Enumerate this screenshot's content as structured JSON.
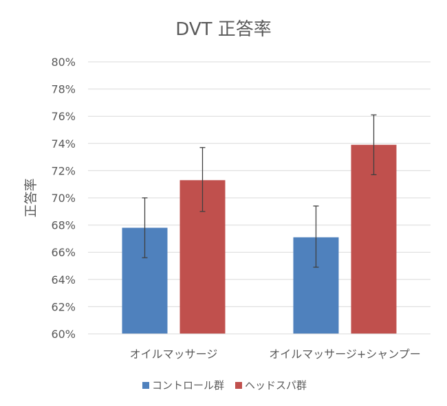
{
  "chart_data": {
    "type": "bar",
    "title": "DVT 正答率",
    "ylabel": "正答率",
    "xlabel": "",
    "categories": [
      "オイルマッサージ",
      "オイルマッサージ+シャンプー"
    ],
    "series": [
      {
        "name": "コントロール群",
        "color": "#4F81BD",
        "values": [
          67.8,
          67.1
        ],
        "error_low": [
          65.6,
          64.9
        ],
        "error_high": [
          70.0,
          69.4
        ]
      },
      {
        "name": "ヘッドスパ群",
        "color": "#C0504D",
        "values": [
          71.3,
          73.9
        ],
        "error_low": [
          69.0,
          71.7
        ],
        "error_high": [
          73.7,
          76.1
        ]
      }
    ],
    "ylim": [
      60,
      80
    ],
    "yticks": [
      60,
      62,
      64,
      66,
      68,
      70,
      72,
      74,
      76,
      78,
      80
    ],
    "ytick_suffix": "%",
    "grid": true,
    "legend_position": "bottom"
  }
}
